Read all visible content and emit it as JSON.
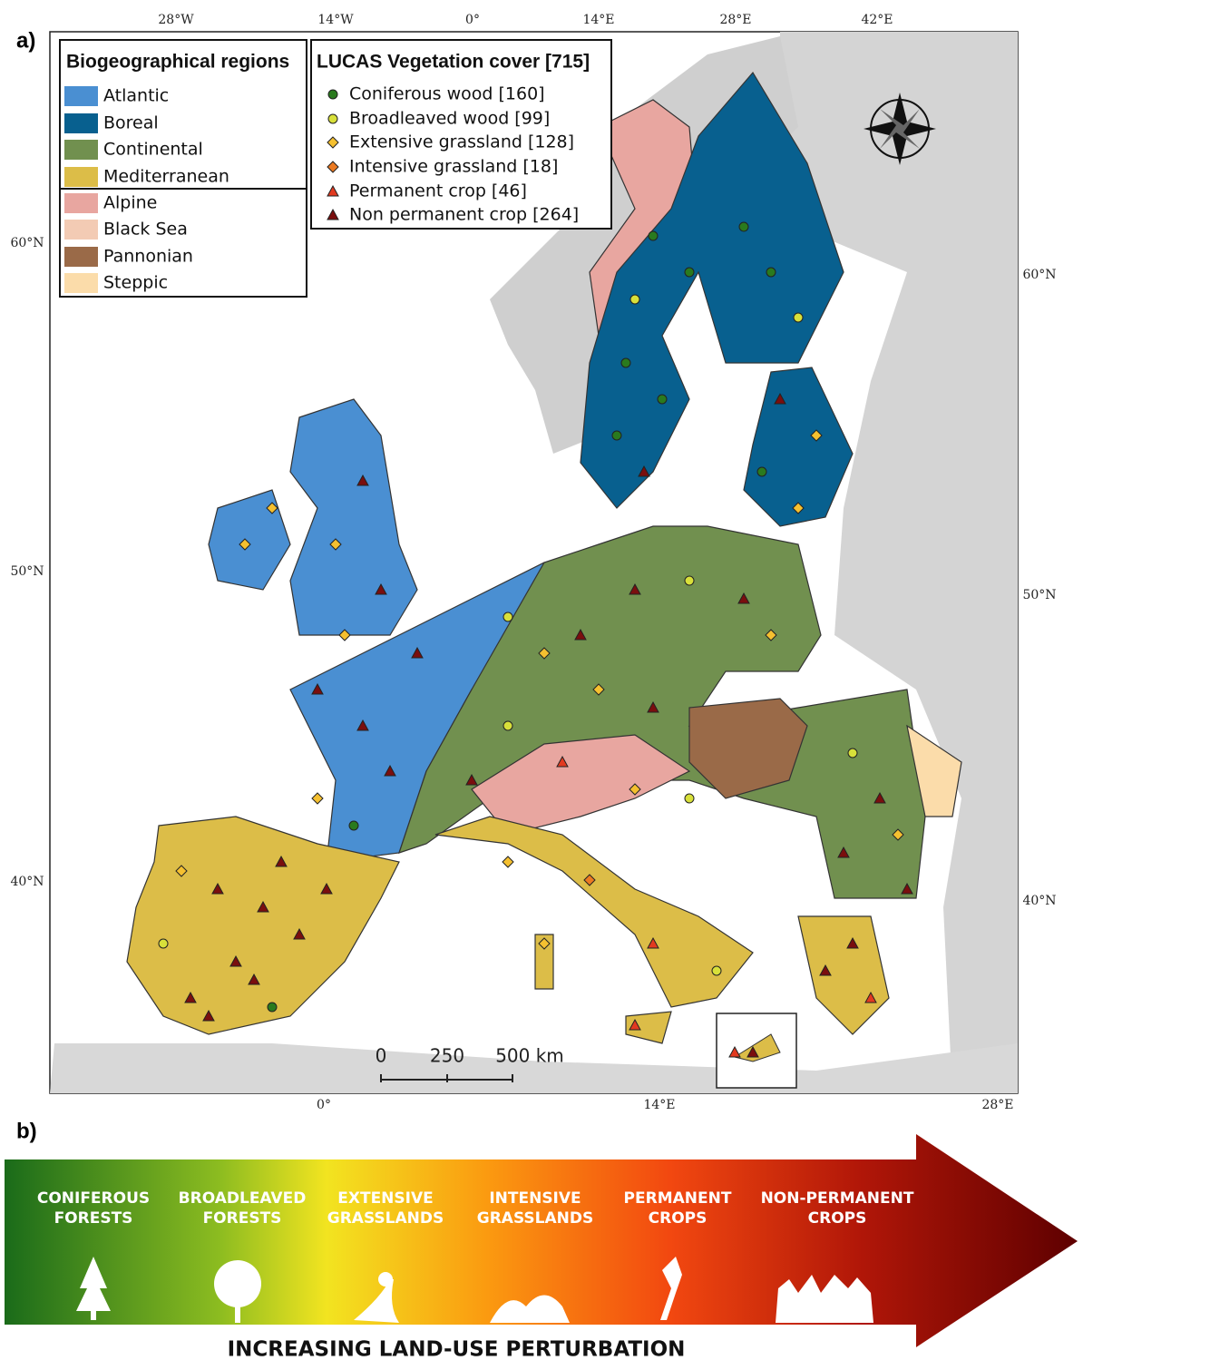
{
  "panel_a": {
    "label": "a)",
    "regions_legend": {
      "title": "Biogeographical regions",
      "items": [
        {
          "name": "Atlantic",
          "color": "#4a8fd2"
        },
        {
          "name": "Boreal",
          "color": "#08608f"
        },
        {
          "name": "Continental",
          "color": "#71904f"
        },
        {
          "name": "Mediterranean",
          "color": "#dcbd48"
        },
        {
          "name": "Alpine",
          "color": "#e8a6a0"
        },
        {
          "name": "Black Sea",
          "color": "#f3cbb4"
        },
        {
          "name": "Pannonian",
          "color": "#9a6a48"
        },
        {
          "name": "Steppic",
          "color": "#fbdcaa"
        }
      ]
    },
    "vegetation_legend": {
      "title": "LUCAS Vegetation cover [715]",
      "items": [
        {
          "label": "Coniferous wood [160]",
          "color": "#2a7a1e",
          "shape": "circle"
        },
        {
          "label": "Broadleaved wood [99]",
          "color": "#d8e03a",
          "shape": "circle"
        },
        {
          "label": "Extensive grassland [128]",
          "color": "#f5c030",
          "shape": "diamond"
        },
        {
          "label": "Intensive grassland [18]",
          "color": "#ec7a22",
          "shape": "diamond"
        },
        {
          "label": "Permanent crop [46]",
          "color": "#e23a20",
          "shape": "triangle"
        },
        {
          "label": "Non permanent crop [264]",
          "color": "#7a0e0e",
          "shape": "triangle"
        }
      ]
    },
    "graticule": {
      "top": [
        "28°W",
        "14°W",
        "0°",
        "14°E",
        "28°E",
        "42°E"
      ],
      "left": [
        "60°N",
        "50°N",
        "40°N"
      ],
      "right": [
        "60°N",
        "50°N",
        "40°N"
      ],
      "bottom": [
        "0°",
        "14°E",
        "28°E"
      ]
    },
    "scale_bar": [
      "0",
      "250",
      "500 km"
    ]
  },
  "panel_b": {
    "label": "b)",
    "stages": [
      [
        "CONIFEROUS",
        "FORESTS"
      ],
      [
        "BROADLEAVED",
        "FORESTS"
      ],
      [
        "EXTENSIVE",
        "GRASSLANDS"
      ],
      [
        "INTENSIVE",
        "GRASSLANDS"
      ],
      [
        "PERMANENT",
        "CROPS"
      ],
      [
        "NON-PERMANENT",
        "CROPS"
      ]
    ],
    "caption": "INCREASING LAND-USE PERTURBATION"
  }
}
